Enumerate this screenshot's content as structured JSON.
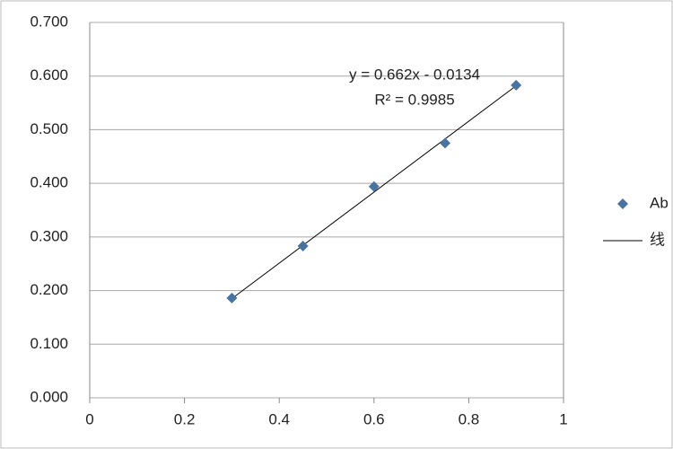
{
  "chart_data": {
    "type": "scatter",
    "x": [
      0.3,
      0.45,
      0.6,
      0.75,
      0.9
    ],
    "series": [
      {
        "name": "Ab",
        "color": "#4a73a0",
        "x": [
          0.3,
          0.45,
          0.6,
          0.75,
          0.9
        ],
        "values": [
          0.186,
          0.283,
          0.394,
          0.475,
          0.583
        ],
        "mode": "markers"
      },
      {
        "name": "线",
        "color": "#000000",
        "x": [
          0.3,
          0.9
        ],
        "values": [
          0.185,
          0.582
        ],
        "mode": "line"
      }
    ],
    "annotations": [
      "y = 0.662x - 0.0134",
      "R² = 0.9985"
    ],
    "xlim": [
      0,
      1
    ],
    "xticks": [
      0,
      0.2,
      0.4,
      0.6,
      0.8,
      1
    ],
    "ylim": [
      0,
      0.7
    ],
    "yticks": [
      {
        "value": 0,
        "label": "0.000"
      },
      {
        "value": 0.1,
        "label": "0.100"
      },
      {
        "value": 0.2,
        "label": "0.200"
      },
      {
        "value": 0.3,
        "label": "0.300"
      },
      {
        "value": 0.4,
        "label": "0.400"
      },
      {
        "value": 0.5,
        "label": "0.500"
      },
      {
        "value": 0.6,
        "label": "0.600"
      },
      {
        "value": 0.7,
        "label": "0.700"
      }
    ],
    "grid": true,
    "legend": "right"
  }
}
